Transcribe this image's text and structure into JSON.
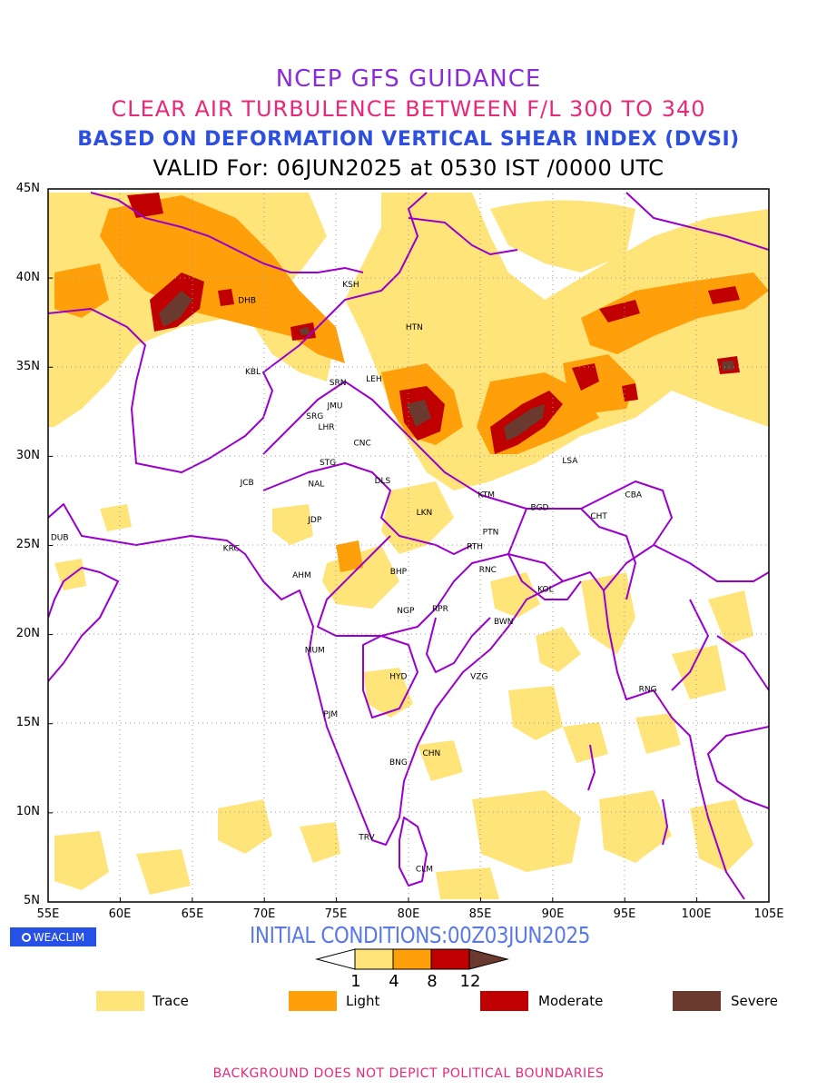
{
  "title": {
    "line1": "NCEP GFS GUIDANCE",
    "line2": "CLEAR AIR TURBULENCE BETWEEN F/L 300 TO 340",
    "line3": "BASED ON DEFORMATION VERTICAL SHEAR INDEX (DVSI)",
    "line4": "VALID For: 06JUN2025 at 0530 IST /0000 UTC"
  },
  "initial_conditions": "INITIAL CONDITIONS:00Z03JUN2025",
  "logo_text": "WEACLIM",
  "footer": "BACKGROUND DOES NOT DEPICT POLITICAL BOUNDARIES",
  "map": {
    "lon_range": [
      55,
      105
    ],
    "lat_range": [
      5,
      45
    ],
    "lat_labels": [
      "45N",
      "40N",
      "35N",
      "30N",
      "25N",
      "20N",
      "15N",
      "10N",
      "5N"
    ],
    "lon_labels": [
      "55E",
      "60E",
      "65E",
      "70E",
      "75E",
      "80E",
      "85E",
      "90E",
      "95E",
      "100E",
      "105E"
    ],
    "colors": {
      "trace": "#ffe47a",
      "light": "#ff9f0a",
      "moderate": "#c00000",
      "severe": "#6b3a2f",
      "boundary": "#9900cc",
      "grid": "#999999"
    },
    "stations": [
      {
        "code": "KSH",
        "lon": 76.0,
        "lat": 39.5
      },
      {
        "code": "DHB",
        "lon": 68.8,
        "lat": 38.6
      },
      {
        "code": "HTN",
        "lon": 80.4,
        "lat": 37.1
      },
      {
        "code": "KBL",
        "lon": 69.2,
        "lat": 34.6
      },
      {
        "code": "SRN",
        "lon": 75.1,
        "lat": 34.0
      },
      {
        "code": "LEH",
        "lon": 77.6,
        "lat": 34.2
      },
      {
        "code": "JMU",
        "lon": 74.9,
        "lat": 32.7
      },
      {
        "code": "SRG",
        "lon": 73.5,
        "lat": 32.1
      },
      {
        "code": "LHR",
        "lon": 74.3,
        "lat": 31.5
      },
      {
        "code": "CNC",
        "lon": 76.8,
        "lat": 30.6
      },
      {
        "code": "STG",
        "lon": 74.4,
        "lat": 29.5
      },
      {
        "code": "NAL",
        "lon": 73.6,
        "lat": 28.3
      },
      {
        "code": "JCB",
        "lon": 68.8,
        "lat": 28.4
      },
      {
        "code": "DLS",
        "lon": 78.2,
        "lat": 28.5
      },
      {
        "code": "KTM",
        "lon": 85.4,
        "lat": 27.7
      },
      {
        "code": "LSA",
        "lon": 91.2,
        "lat": 29.6
      },
      {
        "code": "CBA",
        "lon": 95.6,
        "lat": 27.7
      },
      {
        "code": "BGD",
        "lon": 89.1,
        "lat": 27.0
      },
      {
        "code": "CHT",
        "lon": 93.2,
        "lat": 26.5
      },
      {
        "code": "JDP",
        "lon": 73.5,
        "lat": 26.3
      },
      {
        "code": "LKN",
        "lon": 81.1,
        "lat": 26.7
      },
      {
        "code": "PTN",
        "lon": 85.7,
        "lat": 25.6
      },
      {
        "code": "DUB",
        "lon": 55.8,
        "lat": 25.3
      },
      {
        "code": "RTH",
        "lon": 84.6,
        "lat": 24.8
      },
      {
        "code": "KRC",
        "lon": 67.7,
        "lat": 24.7
      },
      {
        "code": "AHM",
        "lon": 72.6,
        "lat": 23.2
      },
      {
        "code": "BHP",
        "lon": 79.3,
        "lat": 23.4
      },
      {
        "code": "RNC",
        "lon": 85.5,
        "lat": 23.5
      },
      {
        "code": "KOL",
        "lon": 89.5,
        "lat": 22.4
      },
      {
        "code": "NGP",
        "lon": 79.8,
        "lat": 21.2
      },
      {
        "code": "RPR",
        "lon": 82.2,
        "lat": 21.3
      },
      {
        "code": "BWN",
        "lon": 86.6,
        "lat": 20.6
      },
      {
        "code": "MUM",
        "lon": 73.5,
        "lat": 19.0
      },
      {
        "code": "HYD",
        "lon": 79.3,
        "lat": 17.5
      },
      {
        "code": "VZG",
        "lon": 84.9,
        "lat": 17.5
      },
      {
        "code": "RNG",
        "lon": 96.6,
        "lat": 16.8
      },
      {
        "code": "PJM",
        "lon": 74.6,
        "lat": 15.4
      },
      {
        "code": "CHN",
        "lon": 81.6,
        "lat": 13.2
      },
      {
        "code": "BNG",
        "lon": 79.3,
        "lat": 12.7
      },
      {
        "code": "TRV",
        "lon": 77.1,
        "lat": 8.5
      },
      {
        "code": "CLM",
        "lon": 81.1,
        "lat": 6.7
      }
    ]
  },
  "colorbar": {
    "labels": [
      "1",
      "4",
      "8",
      "12"
    ],
    "colors": [
      "#ffe47a",
      "#ff9f0a",
      "#c00000",
      "#6b3a2f"
    ]
  },
  "legend": [
    {
      "label": "Trace",
      "color": "#ffe47a"
    },
    {
      "label": "Light",
      "color": "#ff9f0a"
    },
    {
      "label": "Moderate",
      "color": "#c00000"
    },
    {
      "label": "Severe",
      "color": "#6b3a2f"
    }
  ]
}
